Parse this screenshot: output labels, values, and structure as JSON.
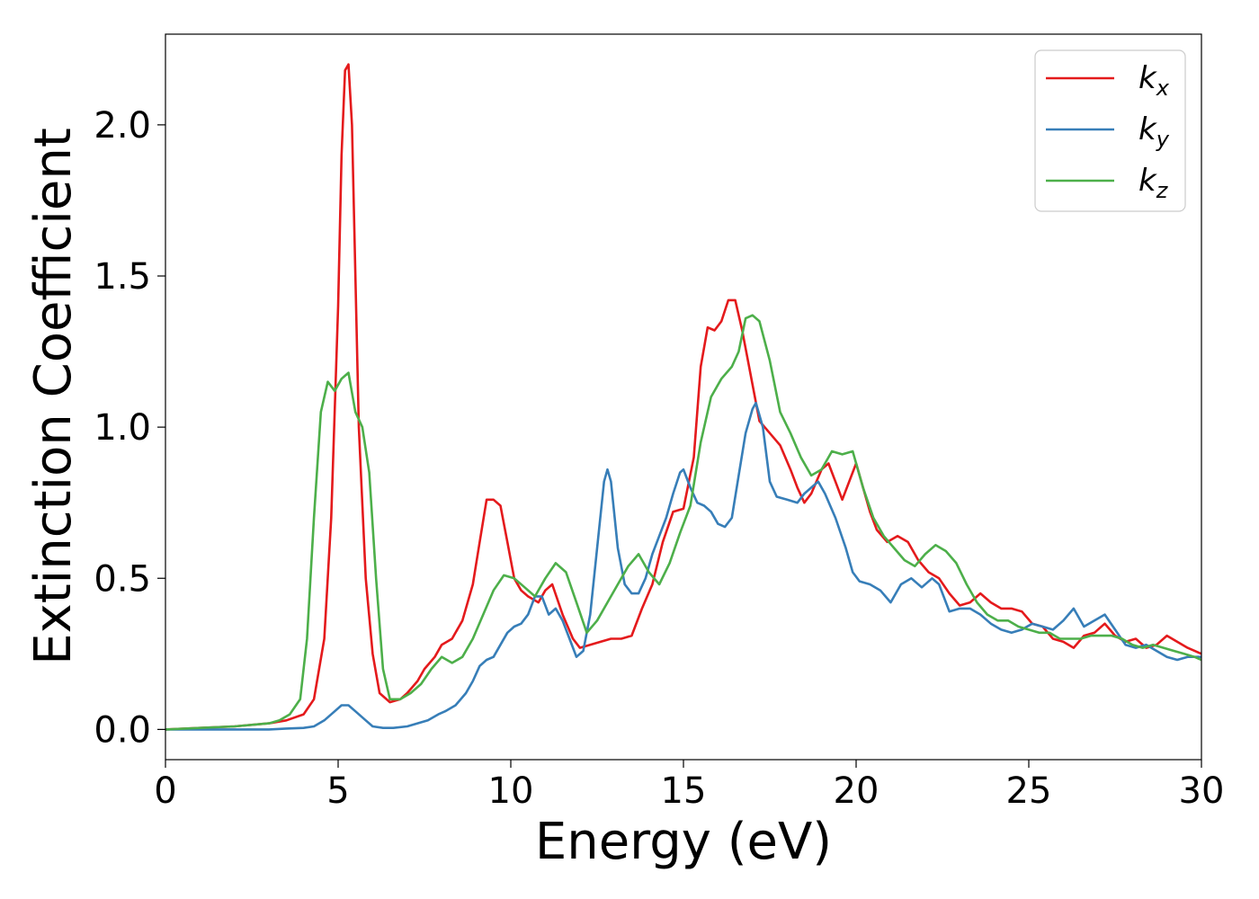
{
  "chart_data": {
    "type": "line",
    "title": "",
    "xlabel": "Energy (eV)",
    "ylabel": "Extinction Coefficient",
    "xlim": [
      0,
      30
    ],
    "ylim": [
      -0.1,
      2.3
    ],
    "xticks": [
      0,
      5,
      10,
      15,
      20,
      25,
      30
    ],
    "xtick_labels": [
      "0",
      "5",
      "10",
      "15",
      "20",
      "25",
      "30"
    ],
    "yticks": [
      0.0,
      0.5,
      1.0,
      1.5,
      2.0
    ],
    "ytick_labels": [
      "0.0",
      "0.5",
      "1.0",
      "1.5",
      "2.0"
    ],
    "grid": false,
    "legend_position": "top-right",
    "series": [
      {
        "name": "k",
        "sub": "x",
        "color": "#e41a1c",
        "x": [
          0,
          1,
          2,
          3,
          3.5,
          4,
          4.3,
          4.6,
          4.8,
          5.0,
          5.1,
          5.2,
          5.3,
          5.4,
          5.5,
          5.6,
          5.8,
          6.0,
          6.2,
          6.5,
          6.8,
          7.0,
          7.3,
          7.5,
          7.8,
          8.0,
          8.3,
          8.6,
          8.9,
          9.1,
          9.3,
          9.5,
          9.7,
          9.9,
          10.1,
          10.3,
          10.5,
          10.8,
          11.0,
          11.2,
          11.5,
          11.8,
          12.0,
          12.3,
          12.6,
          12.9,
          13.2,
          13.5,
          13.8,
          14.1,
          14.4,
          14.7,
          15.0,
          15.3,
          15.5,
          15.7,
          15.9,
          16.1,
          16.3,
          16.5,
          16.7,
          16.9,
          17.2,
          17.5,
          17.8,
          18.1,
          18.3,
          18.5,
          18.7,
          19.0,
          19.2,
          19.4,
          19.6,
          19.8,
          20.0,
          20.2,
          20.4,
          20.6,
          20.9,
          21.2,
          21.5,
          21.8,
          22.1,
          22.4,
          22.7,
          23.0,
          23.3,
          23.6,
          23.9,
          24.2,
          24.5,
          24.8,
          25.1,
          25.4,
          25.7,
          26.0,
          26.3,
          26.6,
          26.9,
          27.2,
          27.5,
          27.8,
          28.1,
          28.4,
          28.7,
          29.0,
          29.3,
          29.6,
          30.0
        ],
        "y": [
          0.0,
          0.005,
          0.01,
          0.02,
          0.03,
          0.05,
          0.1,
          0.3,
          0.7,
          1.4,
          1.9,
          2.18,
          2.2,
          2.0,
          1.5,
          1.0,
          0.5,
          0.25,
          0.12,
          0.09,
          0.1,
          0.12,
          0.16,
          0.2,
          0.24,
          0.28,
          0.3,
          0.36,
          0.48,
          0.62,
          0.76,
          0.76,
          0.74,
          0.62,
          0.5,
          0.46,
          0.44,
          0.42,
          0.46,
          0.48,
          0.38,
          0.3,
          0.27,
          0.28,
          0.29,
          0.3,
          0.3,
          0.31,
          0.4,
          0.48,
          0.62,
          0.72,
          0.73,
          0.9,
          1.2,
          1.33,
          1.32,
          1.35,
          1.42,
          1.42,
          1.32,
          1.2,
          1.02,
          0.98,
          0.94,
          0.86,
          0.8,
          0.75,
          0.78,
          0.86,
          0.88,
          0.82,
          0.76,
          0.82,
          0.88,
          0.8,
          0.72,
          0.66,
          0.62,
          0.64,
          0.62,
          0.56,
          0.52,
          0.5,
          0.45,
          0.41,
          0.42,
          0.45,
          0.42,
          0.4,
          0.4,
          0.39,
          0.35,
          0.34,
          0.3,
          0.29,
          0.27,
          0.31,
          0.32,
          0.35,
          0.31,
          0.29,
          0.3,
          0.27,
          0.28,
          0.31,
          0.29,
          0.27,
          0.25
        ]
      },
      {
        "name": "k",
        "sub": "y",
        "color": "#377eb8",
        "x": [
          0,
          1,
          2,
          3,
          3.5,
          4,
          4.3,
          4.6,
          4.9,
          5.1,
          5.3,
          5.5,
          5.8,
          6.0,
          6.3,
          6.6,
          7.0,
          7.3,
          7.6,
          7.9,
          8.1,
          8.4,
          8.7,
          8.9,
          9.1,
          9.3,
          9.5,
          9.7,
          9.9,
          10.1,
          10.3,
          10.5,
          10.7,
          10.9,
          11.1,
          11.3,
          11.5,
          11.7,
          11.9,
          12.1,
          12.3,
          12.5,
          12.7,
          12.8,
          12.9,
          13.1,
          13.3,
          13.5,
          13.7,
          13.9,
          14.1,
          14.3,
          14.5,
          14.7,
          14.9,
          15.0,
          15.2,
          15.4,
          15.6,
          15.8,
          16.0,
          16.2,
          16.4,
          16.6,
          16.8,
          17.0,
          17.1,
          17.3,
          17.5,
          17.7,
          18.0,
          18.3,
          18.5,
          18.7,
          18.9,
          19.1,
          19.4,
          19.7,
          19.9,
          20.1,
          20.4,
          20.7,
          21.0,
          21.3,
          21.6,
          21.9,
          22.2,
          22.4,
          22.7,
          23.0,
          23.3,
          23.6,
          23.9,
          24.2,
          24.5,
          24.8,
          25.1,
          25.4,
          25.7,
          26.0,
          26.3,
          26.6,
          26.9,
          27.2,
          27.5,
          27.8,
          28.1,
          28.4,
          28.7,
          29.0,
          29.3,
          29.6,
          30.0
        ],
        "y": [
          0.0,
          0.0,
          0.0,
          0.0,
          0.003,
          0.005,
          0.01,
          0.03,
          0.06,
          0.08,
          0.08,
          0.06,
          0.03,
          0.01,
          0.005,
          0.005,
          0.01,
          0.02,
          0.03,
          0.05,
          0.06,
          0.08,
          0.12,
          0.16,
          0.21,
          0.23,
          0.24,
          0.28,
          0.32,
          0.34,
          0.35,
          0.38,
          0.44,
          0.44,
          0.38,
          0.4,
          0.36,
          0.3,
          0.24,
          0.26,
          0.38,
          0.6,
          0.82,
          0.86,
          0.82,
          0.6,
          0.48,
          0.45,
          0.45,
          0.5,
          0.58,
          0.64,
          0.7,
          0.78,
          0.85,
          0.86,
          0.8,
          0.75,
          0.74,
          0.72,
          0.68,
          0.67,
          0.7,
          0.84,
          0.98,
          1.06,
          1.08,
          1.0,
          0.82,
          0.77,
          0.76,
          0.75,
          0.78,
          0.8,
          0.82,
          0.78,
          0.7,
          0.6,
          0.52,
          0.49,
          0.48,
          0.46,
          0.42,
          0.48,
          0.5,
          0.47,
          0.5,
          0.48,
          0.39,
          0.4,
          0.4,
          0.38,
          0.35,
          0.33,
          0.32,
          0.33,
          0.35,
          0.34,
          0.33,
          0.36,
          0.4,
          0.34,
          0.36,
          0.38,
          0.33,
          0.28,
          0.27,
          0.28,
          0.26,
          0.24,
          0.23,
          0.24,
          0.24
        ]
      },
      {
        "name": "k",
        "sub": "z",
        "color": "#4daf4a",
        "x": [
          0,
          1,
          2,
          3,
          3.3,
          3.6,
          3.9,
          4.1,
          4.3,
          4.5,
          4.7,
          4.9,
          5.1,
          5.3,
          5.5,
          5.7,
          5.9,
          6.1,
          6.3,
          6.5,
          6.8,
          7.1,
          7.4,
          7.7,
          8.0,
          8.3,
          8.6,
          8.9,
          9.2,
          9.5,
          9.8,
          10.1,
          10.4,
          10.7,
          11.0,
          11.3,
          11.6,
          11.9,
          12.2,
          12.5,
          12.8,
          13.1,
          13.4,
          13.7,
          14.0,
          14.3,
          14.6,
          14.9,
          15.2,
          15.5,
          15.8,
          16.1,
          16.4,
          16.6,
          16.8,
          17.0,
          17.2,
          17.5,
          17.8,
          18.1,
          18.4,
          18.7,
          19.0,
          19.3,
          19.6,
          19.9,
          20.2,
          20.5,
          20.8,
          21.1,
          21.4,
          21.7,
          22.0,
          22.3,
          22.6,
          22.9,
          23.2,
          23.5,
          23.8,
          24.1,
          24.4,
          24.7,
          25.0,
          25.3,
          25.6,
          25.9,
          26.2,
          26.5,
          26.8,
          27.1,
          27.4,
          27.7,
          28.0,
          28.3,
          28.6,
          28.9,
          29.2,
          29.5,
          29.8,
          30.0
        ],
        "y": [
          0.0,
          0.005,
          0.01,
          0.02,
          0.03,
          0.05,
          0.1,
          0.3,
          0.7,
          1.05,
          1.15,
          1.12,
          1.16,
          1.18,
          1.05,
          1.0,
          0.85,
          0.5,
          0.2,
          0.1,
          0.1,
          0.12,
          0.15,
          0.2,
          0.24,
          0.22,
          0.24,
          0.3,
          0.38,
          0.46,
          0.51,
          0.5,
          0.47,
          0.44,
          0.5,
          0.55,
          0.52,
          0.42,
          0.32,
          0.36,
          0.42,
          0.48,
          0.54,
          0.58,
          0.52,
          0.48,
          0.55,
          0.65,
          0.74,
          0.95,
          1.1,
          1.16,
          1.2,
          1.25,
          1.36,
          1.37,
          1.35,
          1.22,
          1.05,
          0.98,
          0.9,
          0.84,
          0.86,
          0.92,
          0.91,
          0.92,
          0.8,
          0.7,
          0.64,
          0.6,
          0.56,
          0.54,
          0.58,
          0.61,
          0.59,
          0.55,
          0.48,
          0.42,
          0.38,
          0.36,
          0.36,
          0.34,
          0.33,
          0.32,
          0.32,
          0.3,
          0.3,
          0.3,
          0.31,
          0.31,
          0.31,
          0.3,
          0.28,
          0.27,
          0.28,
          0.27,
          0.26,
          0.25,
          0.24,
          0.23
        ]
      }
    ]
  }
}
